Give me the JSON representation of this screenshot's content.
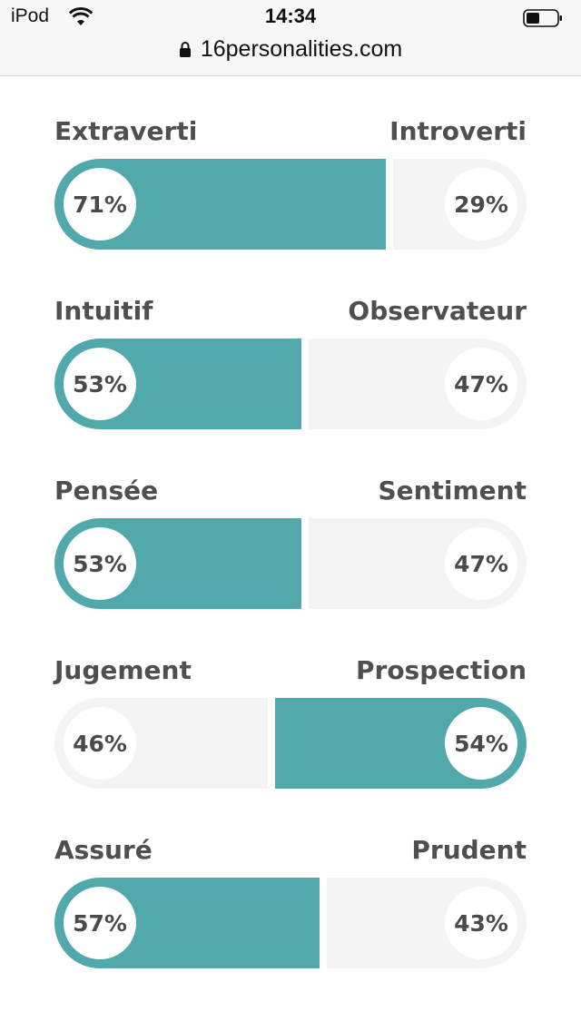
{
  "status_bar": {
    "device": "iPod",
    "time": "14:34",
    "url": "16personalities.com"
  },
  "colors": {
    "accent": "#52a9ab",
    "track": "#f4f4f4",
    "text": "#4a4a4a"
  },
  "traits": [
    {
      "left_label": "Extraverti",
      "right_label": "Introverti",
      "left_pct": "71%",
      "right_pct": "29%",
      "left_value": 71,
      "dominant": "left"
    },
    {
      "left_label": "Intuitif",
      "right_label": "Observateur",
      "left_pct": "53%",
      "right_pct": "47%",
      "left_value": 53,
      "dominant": "left"
    },
    {
      "left_label": "Pensée",
      "right_label": "Sentiment",
      "left_pct": "53%",
      "right_pct": "47%",
      "left_value": 53,
      "dominant": "left"
    },
    {
      "left_label": "Jugement",
      "right_label": "Prospection",
      "left_pct": "46%",
      "right_pct": "54%",
      "left_value": 46,
      "dominant": "right"
    },
    {
      "left_label": "Assuré",
      "right_label": "Prudent",
      "left_pct": "57%",
      "right_pct": "43%",
      "left_value": 57,
      "dominant": "left"
    }
  ]
}
